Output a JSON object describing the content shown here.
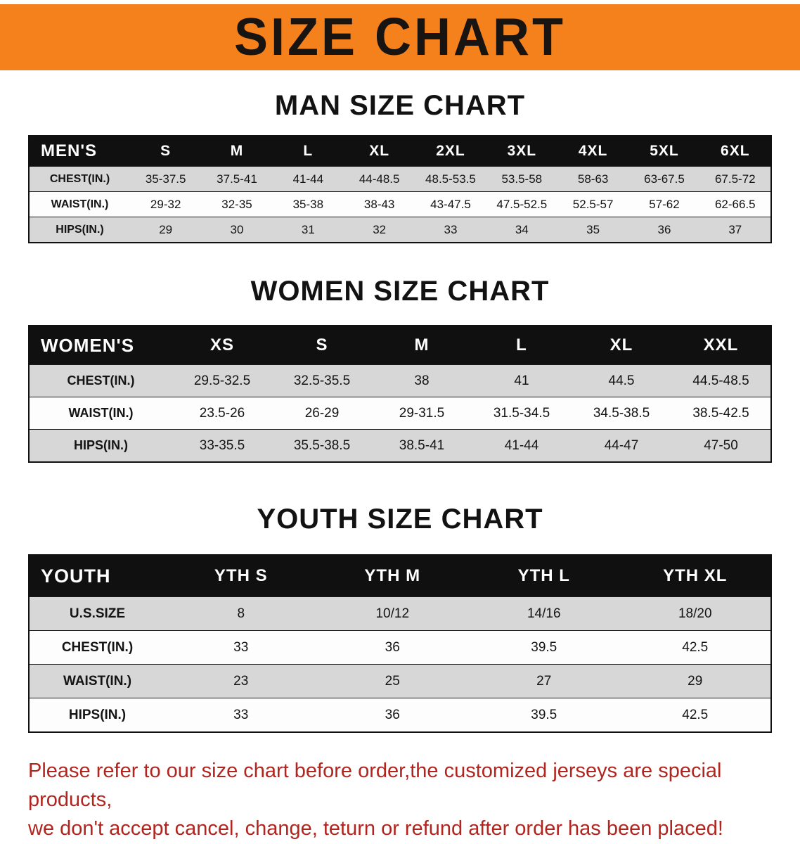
{
  "banner": {
    "title": "SIZE CHART",
    "bg_color": "#f5811c"
  },
  "sections": [
    {
      "id": "men",
      "heading": "MAN SIZE CHART",
      "table": {
        "header": [
          "MEN'S",
          "S",
          "M",
          "L",
          "XL",
          "2XL",
          "3XL",
          "4XL",
          "5XL",
          "6XL"
        ],
        "rows": [
          {
            "label": "CHEST(IN.)",
            "values": [
              "35-37.5",
              "37.5-41",
              "41-44",
              "44-48.5",
              "48.5-53.5",
              "53.5-58",
              "58-63",
              "63-67.5",
              "67.5-72"
            ]
          },
          {
            "label": "WAIST(IN.)",
            "values": [
              "29-32",
              "32-35",
              "35-38",
              "38-43",
              "43-47.5",
              "47.5-52.5",
              "52.5-57",
              "57-62",
              "62-66.5"
            ]
          },
          {
            "label": "HIPS(IN.)",
            "values": [
              "29",
              "30",
              "31",
              "32",
              "33",
              "34",
              "35",
              "36",
              "37"
            ]
          }
        ]
      }
    },
    {
      "id": "women",
      "heading": "WOMEN SIZE CHART",
      "table": {
        "header": [
          "WOMEN'S",
          "XS",
          "S",
          "M",
          "L",
          "XL",
          "XXL"
        ],
        "rows": [
          {
            "label": "CHEST(IN.)",
            "values": [
              "29.5-32.5",
              "32.5-35.5",
              "38",
              "41",
              "44.5",
              "44.5-48.5"
            ]
          },
          {
            "label": "WAIST(IN.)",
            "values": [
              "23.5-26",
              "26-29",
              "29-31.5",
              "31.5-34.5",
              "34.5-38.5",
              "38.5-42.5"
            ]
          },
          {
            "label": "HIPS(IN.)",
            "values": [
              "33-35.5",
              "35.5-38.5",
              "38.5-41",
              "41-44",
              "44-47",
              "47-50"
            ]
          }
        ]
      }
    },
    {
      "id": "youth",
      "heading": "YOUTH SIZE CHART",
      "table": {
        "header": [
          "YOUTH",
          "YTH S",
          "YTH M",
          "YTH L",
          "YTH XL"
        ],
        "rows": [
          {
            "label": "U.S.SIZE",
            "values": [
              "8",
              "10/12",
              "14/16",
              "18/20"
            ]
          },
          {
            "label": "CHEST(IN.)",
            "values": [
              "33",
              "36",
              "39.5",
              "42.5"
            ]
          },
          {
            "label": "WAIST(IN.)",
            "values": [
              "23",
              "25",
              "27",
              "29"
            ]
          },
          {
            "label": "HIPS(IN.)",
            "values": [
              "33",
              "36",
              "39.5",
              "42.5"
            ]
          }
        ]
      }
    }
  ],
  "disclaimer": {
    "color": "#b2251f",
    "lines": [
      "Please refer to our size chart before order,the customized jerseys are special products,",
      "we don't accept cancel, change, teturn or refund after order has been placed!"
    ]
  }
}
